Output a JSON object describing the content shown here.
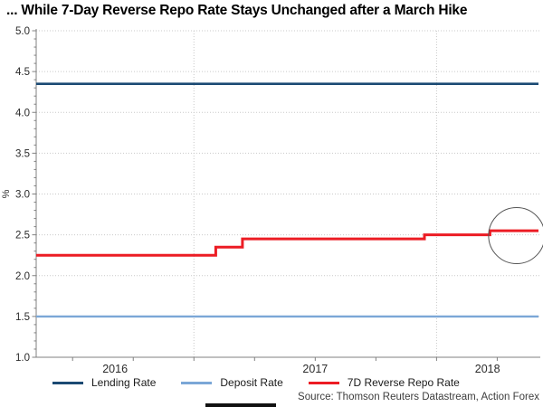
{
  "title": "... While 7-Day Reverse Repo Rate Stays Unchanged after a March Hike",
  "source": "Source: Thomson Reuters Datastream, Action Forex",
  "legend": {
    "items": [
      {
        "label": "Lending Rate",
        "color": "#1b4a73"
      },
      {
        "label": "Deposit Rate",
        "color": "#7ba7d7"
      },
      {
        "label": "7D Reverse Repo Rate",
        "color": "#ec1c24"
      }
    ]
  },
  "chart_data": {
    "type": "line",
    "title": "... While 7-Day Reverse Repo Rate Stays Unchanged after a March Hike",
    "ylabel": "%",
    "y_axis": {
      "range": [
        1.0,
        5.0
      ],
      "major_ticks": [
        1.0,
        1.5,
        2.0,
        2.5,
        3.0,
        3.5,
        4.0,
        4.5,
        5.0
      ],
      "minor_step": 0.1
    },
    "x_axis": {
      "range": [
        2016.35,
        2018.42
      ],
      "year_gridlines": [
        2017,
        2018
      ],
      "quarter_ticks": [
        2016.5,
        2016.75,
        2017.0,
        2017.25,
        2017.5,
        2017.75,
        2018.0,
        2018.25
      ],
      "labels": [
        {
          "text": "2016",
          "x": 2016.675
        },
        {
          "text": "2017",
          "x": 2017.5
        },
        {
          "text": "2018",
          "x": 2018.21
        }
      ]
    },
    "series": [
      {
        "name": "Lending Rate",
        "color": "#1b4a73",
        "width": 2.6,
        "points": [
          [
            2016.35,
            4.35
          ],
          [
            2018.42,
            4.35
          ]
        ]
      },
      {
        "name": "Deposit Rate",
        "color": "#7ba7d7",
        "width": 2.4,
        "points": [
          [
            2016.35,
            1.5
          ],
          [
            2018.42,
            1.5
          ]
        ]
      },
      {
        "name": "7D Reverse Repo Rate",
        "color": "#ec1c24",
        "width": 3,
        "points": [
          [
            2016.35,
            2.25
          ],
          [
            2017.09,
            2.25
          ],
          [
            2017.09,
            2.35
          ],
          [
            2017.2,
            2.35
          ],
          [
            2017.2,
            2.45
          ],
          [
            2017.95,
            2.45
          ],
          [
            2017.95,
            2.5
          ],
          [
            2018.22,
            2.5
          ],
          [
            2018.22,
            2.55
          ],
          [
            2018.42,
            2.55
          ]
        ]
      }
    ],
    "annotation": {
      "type": "circle",
      "x": 2018.33,
      "y": 2.49,
      "radius_px": 31
    },
    "grid": {
      "color": "#c9c9c9",
      "axis_color": "#808080",
      "tick_label_color": "#2b2b2b"
    },
    "legend_position": "bottom"
  }
}
